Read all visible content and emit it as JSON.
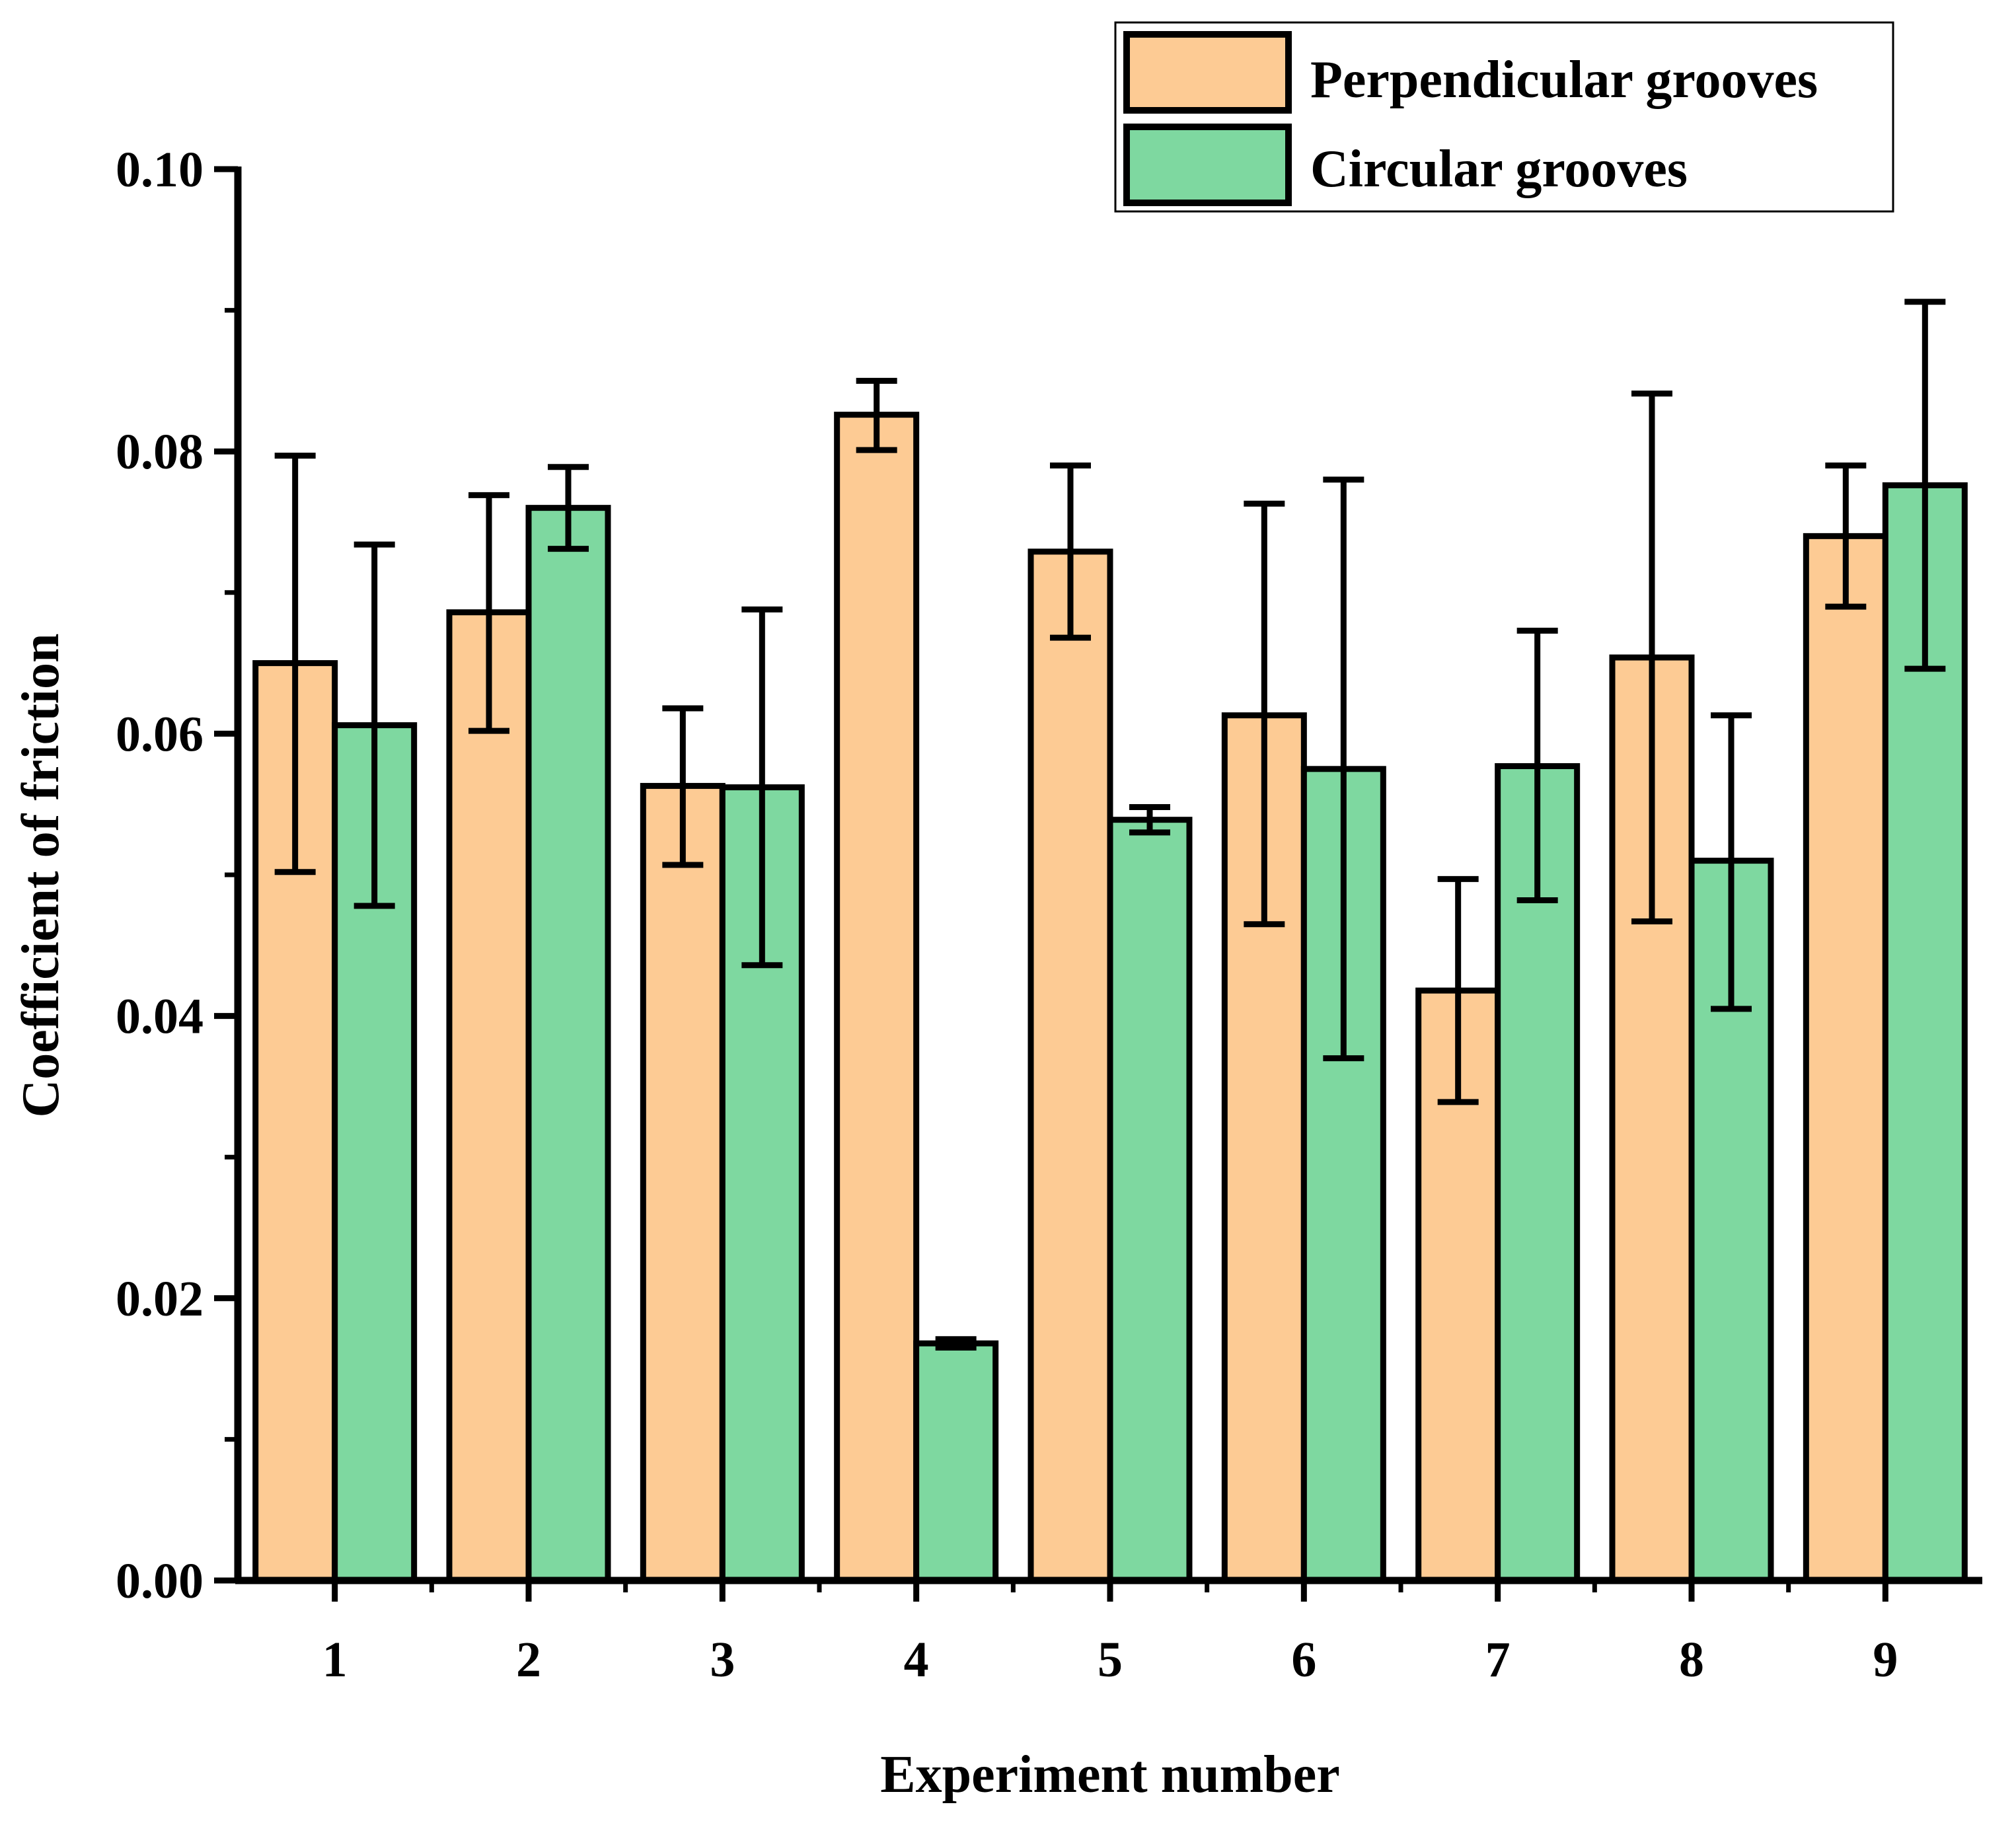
{
  "chart_data": {
    "type": "bar",
    "title": "",
    "xlabel": "Experiment number",
    "ylabel": "Coefficient of friction",
    "ylim": [
      0,
      0.1
    ],
    "yticks": [
      "0.00",
      "0.02",
      "0.04",
      "0.06",
      "0.08",
      "0.10"
    ],
    "categories": [
      "1",
      "2",
      "3",
      "4",
      "5",
      "6",
      "7",
      "8",
      "9"
    ],
    "legend_position": "top-right",
    "series": [
      {
        "name": "Perpendicular grooves",
        "color": "#FDCB94",
        "values": [
          0.065,
          0.0686,
          0.0563,
          0.0826,
          0.0729,
          0.0613,
          0.0418,
          0.0654,
          0.074
        ],
        "err_low": [
          0.0502,
          0.0602,
          0.0507,
          0.0801,
          0.0668,
          0.0465,
          0.0339,
          0.0467,
          0.069
        ],
        "err_high": [
          0.0797,
          0.0769,
          0.0618,
          0.085,
          0.079,
          0.0763,
          0.0497,
          0.0841,
          0.079
        ]
      },
      {
        "name": "Circular grooves",
        "color": "#7ED8A0",
        "values": [
          0.0606,
          0.076,
          0.0562,
          0.0168,
          0.0539,
          0.0575,
          0.0577,
          0.051,
          0.0776
        ],
        "err_low": [
          0.0478,
          0.0731,
          0.0436,
          0.0165,
          0.053,
          0.037,
          0.0482,
          0.0405,
          0.0646
        ],
        "err_high": [
          0.0734,
          0.0789,
          0.0688,
          0.0171,
          0.0548,
          0.078,
          0.0673,
          0.0613,
          0.0906
        ]
      }
    ]
  }
}
